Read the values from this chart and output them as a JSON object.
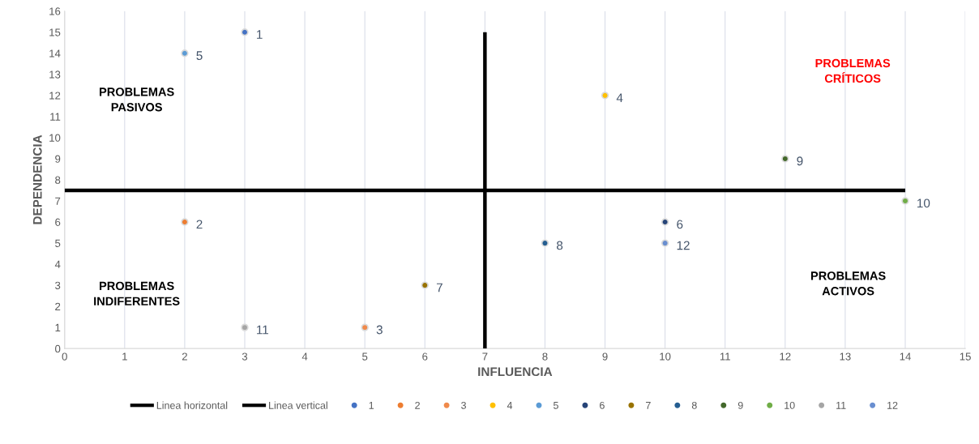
{
  "chart_data": {
    "type": "scatter",
    "xlabel": "INFLUENCIA",
    "ylabel": "DEPENDENCIA",
    "xlim": [
      0,
      15
    ],
    "ylim": [
      0,
      16
    ],
    "xticks": [
      0,
      1,
      2,
      3,
      4,
      5,
      6,
      7,
      8,
      9,
      10,
      11,
      12,
      13,
      14,
      15
    ],
    "yticks": [
      0,
      1,
      2,
      3,
      4,
      5,
      6,
      7,
      8,
      9,
      10,
      11,
      12,
      13,
      14,
      15,
      16
    ],
    "grid": "x",
    "legend": "bottom",
    "marker": "circle",
    "annotations": [
      "PROBLEMAS\nPASIVOS",
      "PROBLEMAS\nCRÍTICOS",
      "PROBLEMAS\nINDIFERENTES",
      "PROBLEMAS\nACTIVOS"
    ],
    "series": [
      {
        "name": "Linea horizontal",
        "type": "line",
        "marker": "none",
        "color": "#000000",
        "x": [
          0,
          14
        ],
        "values": [
          7.5,
          7.5
        ]
      },
      {
        "name": "Linea vertical",
        "type": "line",
        "marker": "none",
        "color": "#000000",
        "x": [
          7,
          7
        ],
        "values": [
          0,
          15
        ]
      },
      {
        "name": "1",
        "color": "#4472c4",
        "x": [
          3
        ],
        "values": [
          15
        ]
      },
      {
        "name": "2",
        "color": "#ed7d31",
        "x": [
          2
        ],
        "values": [
          6
        ]
      },
      {
        "name": "3",
        "color": "#f08a4b",
        "x": [
          5
        ],
        "values": [
          1
        ]
      },
      {
        "name": "4",
        "color": "#ffc000",
        "x": [
          9
        ],
        "values": [
          12
        ]
      },
      {
        "name": "5",
        "color": "#5b9bd5",
        "x": [
          2
        ],
        "values": [
          14
        ]
      },
      {
        "name": "6",
        "color": "#264478",
        "x": [
          10
        ],
        "values": [
          6
        ]
      },
      {
        "name": "7",
        "color": "#997300",
        "x": [
          6
        ],
        "values": [
          3
        ]
      },
      {
        "name": "8",
        "color": "#255e91",
        "x": [
          8
        ],
        "values": [
          5
        ]
      },
      {
        "name": "9",
        "color": "#43682b",
        "x": [
          12
        ],
        "values": [
          9
        ]
      },
      {
        "name": "10",
        "color": "#70ad47",
        "x": [
          14
        ],
        "values": [
          7
        ]
      },
      {
        "name": "11",
        "color": "#a5a5a5",
        "x": [
          3
        ],
        "values": [
          1
        ]
      },
      {
        "name": "12",
        "color": "#698ed0",
        "x": [
          10
        ],
        "values": [
          5
        ]
      }
    ]
  }
}
